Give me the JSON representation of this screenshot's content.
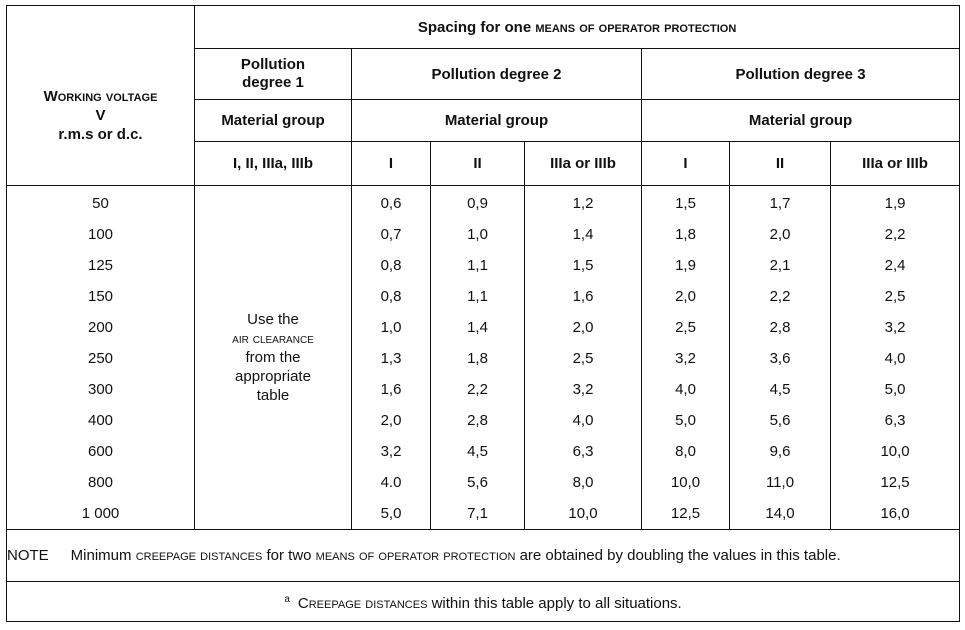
{
  "header": {
    "working_voltage_l1": "Working voltage",
    "working_voltage_l2": "V",
    "working_voltage_l3": "r.m.s or d.c.",
    "spacing_prefix": "Spacing for one ",
    "spacing_sc": "means of operator protection",
    "pd1_l1": "Pollution",
    "pd1_l2": "degree 1",
    "pd2": "Pollution degree 2",
    "pd3": "Pollution degree 3",
    "material_group": "Material group",
    "groups": {
      "pd1": "I, II, IIIa, IIIb",
      "pd2_i": "I",
      "pd2_ii": "II",
      "pd2_iii": "IIIa or IIIb",
      "pd3_i": "I",
      "pd3_ii": "II",
      "pd3_iii": "IIIa or IIIb"
    }
  },
  "use_clearance": {
    "l1": "Use the",
    "l2": "air clearance",
    "l3": "from the",
    "l4": "appropriate",
    "l5": "table"
  },
  "voltages": [
    "50",
    "100",
    "125",
    "150",
    "200",
    "250",
    "300",
    "400",
    "600",
    "800",
    "1 000"
  ],
  "pd2_i": [
    "0,6",
    "0,7",
    "0,8",
    "0,8",
    "1,0",
    "1,3",
    "1,6",
    "2,0",
    "3,2",
    "4.0",
    "5,0"
  ],
  "pd2_ii": [
    "0,9",
    "1,0",
    "1,1",
    "1,1",
    "1,4",
    "1,8",
    "2,2",
    "2,8",
    "4,5",
    "5,6",
    "7,1"
  ],
  "pd2_iii": [
    "1,2",
    "1,4",
    "1,5",
    "1,6",
    "2,0",
    "2,5",
    "3,2",
    "4,0",
    "6,3",
    "8,0",
    "10,0"
  ],
  "pd3_i": [
    "1,5",
    "1,8",
    "1,9",
    "2,0",
    "2,5",
    "3,2",
    "4,0",
    "5,0",
    "8,0",
    "10,0",
    "12,5"
  ],
  "pd3_ii": [
    "1,7",
    "2,0",
    "2,1",
    "2,2",
    "2,8",
    "3,6",
    "4,5",
    "5,6",
    "9,6",
    "11,0",
    "14,0"
  ],
  "pd3_iii": [
    "1,9",
    "2,2",
    "2,4",
    "2,5",
    "3,2",
    "4,0",
    "5,0",
    "6,3",
    "10,0",
    "12,5",
    "16,0"
  ],
  "note": {
    "label": "NOTE",
    "t1": "Minimum ",
    "sc1": "creepage distances",
    "t2": " for two ",
    "sc2": "means of operator protection",
    "t3": " are obtained by doubling the values in this table."
  },
  "footnote": {
    "marker": "a",
    "sc": "Creepage distances",
    "text": " within this table apply to all situations."
  }
}
